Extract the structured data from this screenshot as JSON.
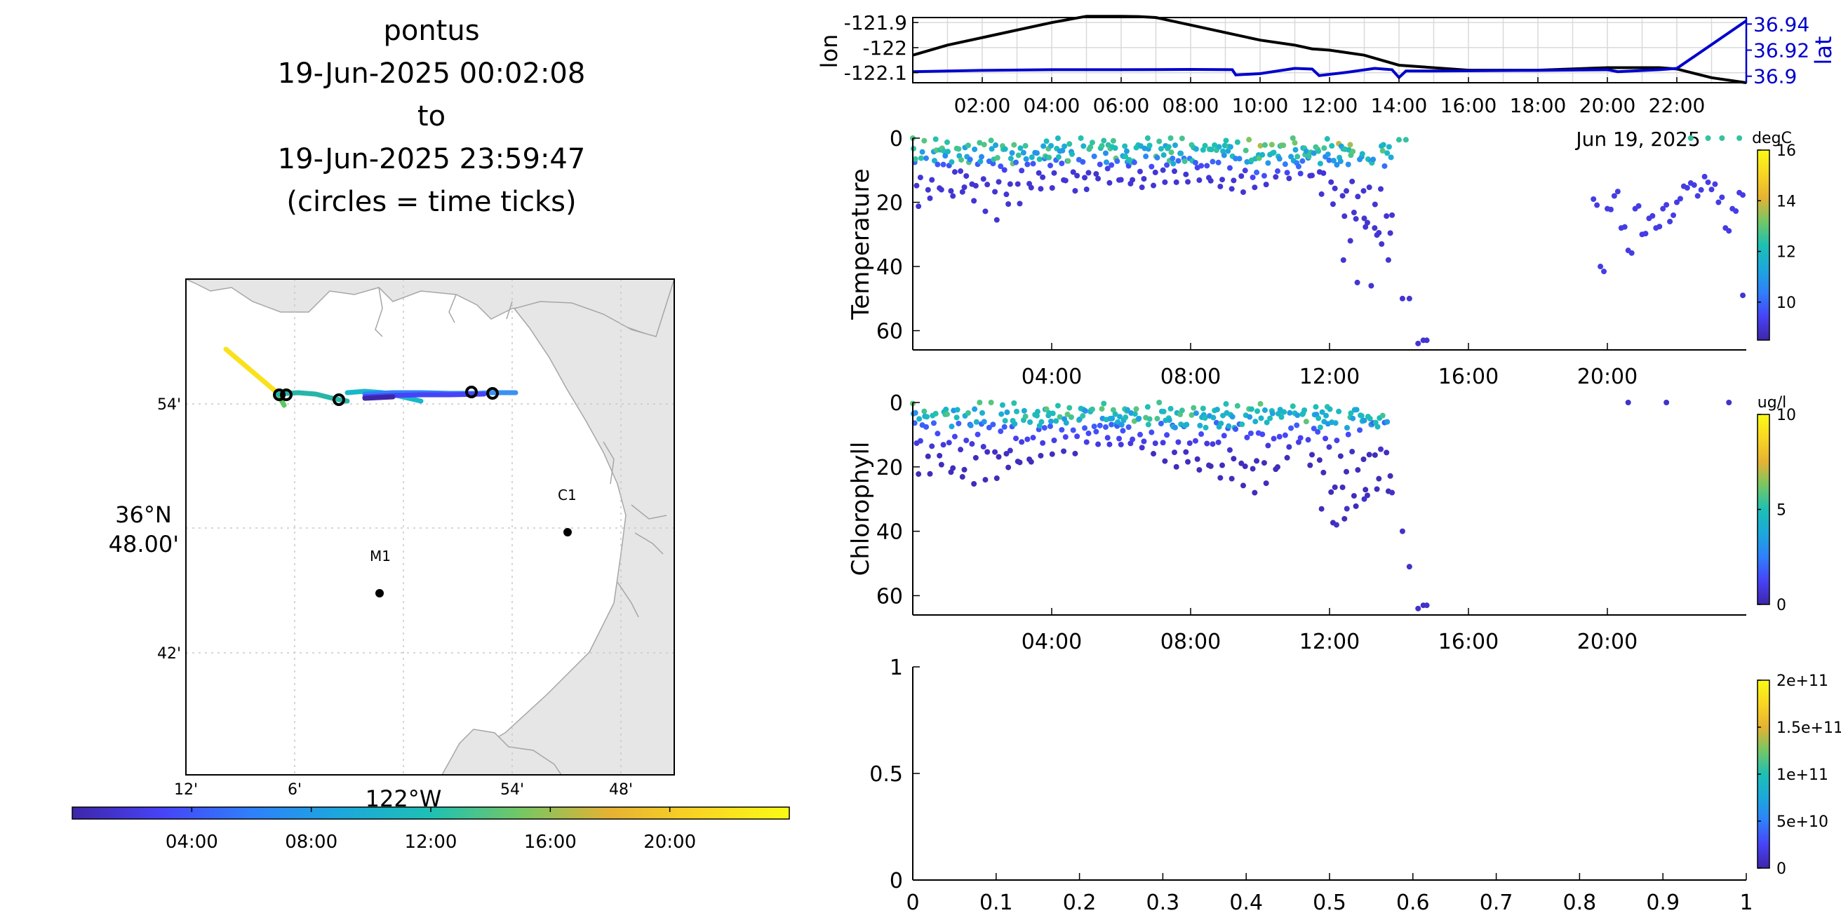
{
  "title_lines": [
    "pontus",
    "19-Jun-2025 00:02:08",
    "to",
    "19-Jun-2025 23:59:47",
    "(circles = time ticks)"
  ],
  "colors": {
    "lon_line": "#000000",
    "lat_line": "#0000cc",
    "land": "#e6e6e6",
    "coast": "#a6a6a6",
    "grid": "#c8c8c8",
    "parula": [
      "#3e26a8",
      "#4743f8",
      "#2f80fb",
      "#1ca8dc",
      "#1dc0b4",
      "#74c765",
      "#e6b233",
      "#f9d623",
      "#f9fb15"
    ]
  },
  "chart_data": [
    {
      "type": "line",
      "id": "lonlat",
      "ylabel": "lon",
      "ylabel_right": "lat",
      "xlim": [
        0,
        24
      ],
      "ylim": [
        -122.14,
        -121.88
      ],
      "ylim_right": [
        36.895,
        36.945
      ],
      "yticks": [
        -121.9,
        -122.0,
        -122.1
      ],
      "ytick_labels": [
        "-121.9",
        "-122",
        "-122.1"
      ],
      "yticks_right": [
        36.94,
        36.92,
        36.9
      ],
      "ytick_labels_right": [
        "36.94",
        "36.92",
        "36.9"
      ],
      "xticks": [
        2,
        4,
        6,
        8,
        10,
        12,
        14,
        16,
        18,
        20,
        22
      ],
      "xtick_labels": [
        "02:00",
        "04:00",
        "06:00",
        "08:00",
        "10:00",
        "12:00",
        "14:00",
        "16:00",
        "18:00",
        "20:00",
        "22:00"
      ],
      "date_label": "Jun 19, 2025",
      "grid": true,
      "lon": {
        "x": [
          0,
          1,
          2,
          3,
          4,
          5,
          6,
          6.5,
          7,
          8,
          9,
          10,
          11,
          11.5,
          12,
          13,
          14,
          16,
          18,
          20,
          21.5,
          22,
          23,
          24
        ],
        "y": [
          -122.03,
          -121.99,
          -121.96,
          -121.93,
          -121.9,
          -121.875,
          -121.875,
          -121.876,
          -121.88,
          -121.91,
          -121.94,
          -121.97,
          -121.99,
          -122.005,
          -122.01,
          -122.03,
          -122.07,
          -122.09,
          -122.09,
          -122.08,
          -122.08,
          -122.085,
          -122.12,
          -122.14
        ]
      },
      "lat": {
        "x": [
          0,
          2,
          4,
          6,
          8,
          9.2,
          9.3,
          10,
          11,
          11.5,
          11.7,
          12.5,
          13.3,
          13.8,
          14,
          14.2,
          15,
          18,
          20,
          20.3,
          21.5,
          22,
          24
        ],
        "y": [
          36.9035,
          36.9045,
          36.905,
          36.905,
          36.9052,
          36.905,
          36.901,
          36.902,
          36.906,
          36.9055,
          36.9005,
          36.903,
          36.906,
          36.905,
          36.899,
          36.904,
          36.904,
          36.9045,
          36.905,
          36.9035,
          36.905,
          36.906,
          36.9425
        ]
      }
    },
    {
      "type": "scatter",
      "id": "temperature",
      "ylabel": "Temperature",
      "units": "degC",
      "xlim": [
        0,
        24
      ],
      "ylim": [
        66,
        0
      ],
      "yticks": [
        0,
        20,
        40,
        60
      ],
      "xticks": [
        4,
        8,
        12,
        16,
        20
      ],
      "xtick_labels": [
        "04:00",
        "08:00",
        "12:00",
        "16:00",
        "20:00"
      ],
      "clim": [
        8.5,
        16
      ],
      "colorbar_ticks": [
        10,
        12,
        14,
        16
      ],
      "profiles_x": [
        0,
        0.8,
        1.6,
        2.4,
        3.2,
        4,
        4.8,
        5.6,
        6.4,
        7.2,
        8,
        8.8,
        9.6,
        10.4,
        11.2,
        12,
        12.8,
        13.6
      ],
      "profiles_zmax": [
        22,
        18,
        22,
        24,
        20,
        16,
        16,
        14,
        15,
        14,
        13,
        16,
        18,
        14,
        12,
        20,
        30,
        40
      ],
      "profiles_tsurf": [
        12.5,
        12.5,
        12.5,
        12.6,
        12.4,
        12.3,
        12.3,
        12.4,
        12.5,
        12.4,
        12.4,
        12.6,
        13.5,
        13.0,
        12.5,
        13.5,
        13.0,
        12.5
      ],
      "deep_points": [
        [
          12.4,
          38
        ],
        [
          12.6,
          32
        ],
        [
          12.8,
          45
        ],
        [
          13.2,
          46
        ],
        [
          13.5,
          33
        ],
        [
          13.3,
          28
        ],
        [
          13.0,
          25
        ],
        [
          13.8,
          24
        ],
        [
          14.1,
          50
        ],
        [
          14.3,
          50
        ],
        [
          14.55,
          64
        ],
        [
          14.7,
          63
        ],
        [
          14.8,
          63
        ]
      ],
      "late_x": [
        19.6,
        19.8,
        20.0,
        20.2,
        20.4,
        20.6,
        20.8,
        21.0,
        21.2,
        21.4,
        21.6,
        21.8,
        22.0,
        22.2,
        22.4,
        22.6,
        22.8,
        23.0,
        23.2,
        23.4,
        23.6,
        23.8
      ],
      "late_depth": [
        19,
        40,
        22,
        18,
        28,
        35,
        22,
        30,
        25,
        28,
        22,
        26,
        20,
        15,
        14,
        18,
        12,
        16,
        20,
        28,
        22,
        17
      ],
      "far_points": [
        [
          23.9,
          49
        ]
      ],
      "surface_extra": [
        [
          14.2,
          0.5
        ],
        [
          14.0,
          0.5
        ],
        [
          22.4,
          0
        ],
        [
          22.9,
          0
        ],
        [
          23.3,
          0
        ],
        [
          23.8,
          0
        ]
      ]
    },
    {
      "type": "scatter",
      "id": "chlorophyll",
      "ylabel": "Chlorophyll",
      "units": "ug/l",
      "xlim": [
        0,
        24
      ],
      "ylim": [
        66,
        0
      ],
      "yticks": [
        0,
        20,
        40,
        60
      ],
      "xticks": [
        4,
        8,
        12,
        16,
        20
      ],
      "xtick_labels": [
        "04:00",
        "08:00",
        "12:00",
        "16:00",
        "20:00"
      ],
      "clim": [
        0,
        10
      ],
      "colorbar_ticks": [
        0,
        5,
        10
      ],
      "profiles_x": [
        0,
        0.8,
        1.6,
        2.4,
        3.2,
        4,
        4.8,
        5.6,
        6.4,
        7.2,
        8,
        8.8,
        9.6,
        10.4,
        11.2,
        12,
        12.8,
        13.6
      ],
      "profiles_zmax": [
        20,
        24,
        26,
        24,
        22,
        16,
        14,
        14,
        15,
        18,
        22,
        24,
        28,
        26,
        12,
        40,
        36,
        30
      ],
      "deep_points": [
        [
          14.1,
          40
        ],
        [
          14.3,
          51
        ],
        [
          14.55,
          64
        ],
        [
          14.7,
          63
        ],
        [
          14.8,
          63
        ],
        [
          12.2,
          38
        ],
        [
          12.5,
          33
        ],
        [
          13.0,
          30
        ],
        [
          13.8,
          28
        ]
      ],
      "surface_extra": [
        [
          20.6,
          0
        ],
        [
          21.7,
          0
        ],
        [
          23.5,
          0
        ]
      ]
    },
    {
      "type": "scatter",
      "id": "empty",
      "xlim": [
        0,
        1
      ],
      "ylim": [
        0,
        1
      ],
      "xticks": [
        0,
        0.1,
        0.2,
        0.3,
        0.4,
        0.5,
        0.6,
        0.7,
        0.8,
        0.9,
        1
      ],
      "xtick_labels": [
        "0",
        "0.1",
        "0.2",
        "0.3",
        "0.4",
        "0.5",
        "0.6",
        "0.7",
        "0.8",
        "0.9",
        "1"
      ],
      "yticks": [
        0,
        0.5,
        1
      ],
      "ytick_labels": [
        "0",
        "0.5",
        "1"
      ],
      "clim": [
        0,
        200000000000.0
      ],
      "colorbar_ticks": [
        0,
        50000000000.0,
        100000000000.0,
        150000000000.0,
        200000000000.0
      ],
      "colorbar_tick_labels": [
        "0",
        "5e+10",
        "1e+11",
        "1.5e+11",
        "2e+11"
      ]
    }
  ],
  "map": {
    "lat_labels": [
      "54'",
      "36°N\n48.00'",
      "42'"
    ],
    "lon_labels": [
      "12'",
      "6'",
      "122°W",
      "54'",
      "48'"
    ],
    "stations": [
      {
        "name": "M1"
      },
      {
        "name": "C1"
      }
    ],
    "time_colorbar_ticks": [
      "04:00",
      "08:00",
      "12:00",
      "16:00",
      "20:00"
    ]
  }
}
